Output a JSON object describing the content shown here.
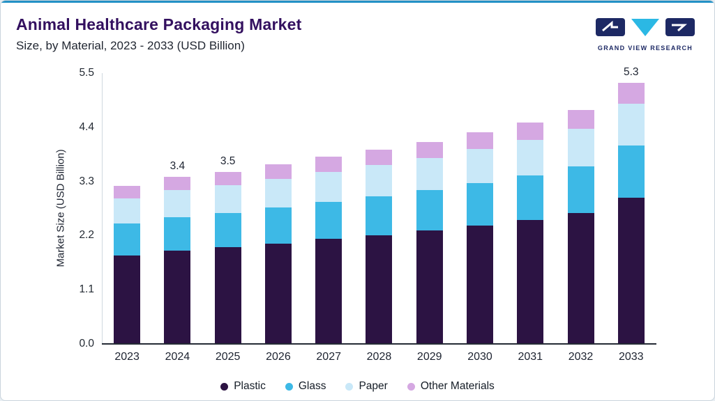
{
  "theme": {
    "accent_color": "#2391c6",
    "logo_navy": "#1d2964",
    "logo_cyan": "#2bb8e4"
  },
  "header": {
    "title": "Animal Healthcare Packaging Market",
    "subtitle": "Size, by Material, 2023 - 2033 (USD Billion)"
  },
  "logo": {
    "text": "GRAND VIEW RESEARCH"
  },
  "chart_data": {
    "type": "bar",
    "stacked": true,
    "title": "Animal Healthcare Packaging Market Size, by Material, 2023 - 2033 (USD Billion)",
    "xlabel": "",
    "ylabel": "Market Size (USD Billion)",
    "ylim": [
      0,
      5.5
    ],
    "yticks": [
      "0.0",
      "1.1",
      "2.2",
      "3.3",
      "4.4",
      "5.5"
    ],
    "grid": false,
    "legend_position": "bottom",
    "categories": [
      "2023",
      "2024",
      "2025",
      "2026",
      "2027",
      "2028",
      "2029",
      "2030",
      "2031",
      "2032",
      "2033"
    ],
    "series": [
      {
        "name": "Plastic",
        "color": "#2c1343",
        "values": [
          1.8,
          1.9,
          1.96,
          2.04,
          2.13,
          2.21,
          2.3,
          2.41,
          2.52,
          2.66,
          2.97
        ]
      },
      {
        "name": "Glass",
        "color": "#3db9e6",
        "values": [
          0.64,
          0.68,
          0.7,
          0.73,
          0.76,
          0.79,
          0.82,
          0.86,
          0.9,
          0.95,
          1.06
        ]
      },
      {
        "name": "Paper",
        "color": "#c9e8f8",
        "values": [
          0.51,
          0.54,
          0.56,
          0.58,
          0.61,
          0.63,
          0.66,
          0.69,
          0.72,
          0.76,
          0.85
        ]
      },
      {
        "name": "Other Materials",
        "color": "#d5a8e2",
        "values": [
          0.26,
          0.28,
          0.28,
          0.3,
          0.3,
          0.32,
          0.32,
          0.34,
          0.36,
          0.38,
          0.42
        ]
      }
    ],
    "totals": [
      3.2,
      3.4,
      3.5,
      3.65,
      3.8,
      3.95,
      4.1,
      4.3,
      4.5,
      4.75,
      5.3
    ],
    "bar_labels": {
      "2024": "3.4",
      "2025": "3.5",
      "2033": "5.3"
    }
  }
}
